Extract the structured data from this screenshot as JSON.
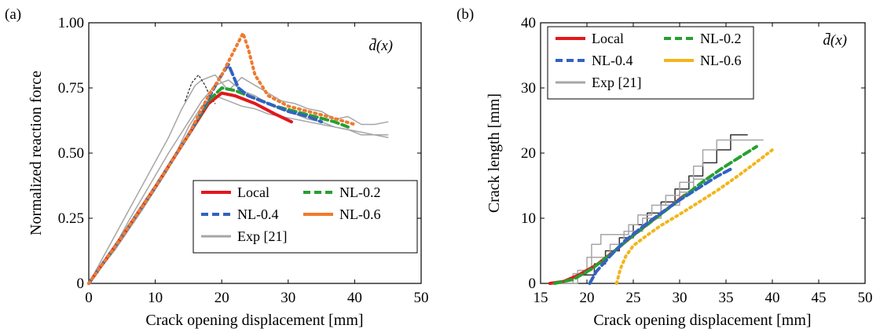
{
  "colors": {
    "local": "#e3171c",
    "nl02": "#27a02f",
    "nl04": "#3162c2",
    "nl06": "#f07a2e",
    "nl06_b": "#f3b51b",
    "exp": "#a6a6a6",
    "exp_dark": "#333333"
  },
  "chart_data": [
    {
      "type": "line",
      "panel_label": "(a)",
      "annotation": "d̄(x)",
      "xlabel": "Crack opening displacement [mm]",
      "ylabel": "Normalized reaction force",
      "xlim": [
        0,
        50
      ],
      "ylim": [
        0,
        1.0
      ],
      "x_ticks": [
        "0",
        "10",
        "20",
        "30",
        "40",
        "50"
      ],
      "y_ticks": [
        "0",
        "0.25",
        "0.50",
        "0.75",
        "1.00"
      ],
      "grid": false,
      "legend_position": "lower-right",
      "legend": [
        "Local",
        "NL-0.2",
        "NL-0.4",
        "NL-0.6",
        "Exp [21]"
      ],
      "series": [
        {
          "name": "Local",
          "style": "solid",
          "color_key": "local",
          "x": [
            0,
            5,
            10,
            15,
            18,
            20,
            22,
            25,
            28,
            30.5
          ],
          "y": [
            0,
            0.18,
            0.37,
            0.57,
            0.69,
            0.73,
            0.72,
            0.69,
            0.65,
            0.62
          ]
        },
        {
          "name": "NL-0.2",
          "style": "dashed",
          "color_key": "nl02",
          "x": [
            0,
            5,
            10,
            15,
            18,
            20,
            22,
            25,
            28,
            31,
            34,
            37,
            39
          ],
          "y": [
            0,
            0.18,
            0.37,
            0.57,
            0.7,
            0.75,
            0.74,
            0.71,
            0.68,
            0.66,
            0.64,
            0.62,
            0.6
          ]
        },
        {
          "name": "NL-0.4",
          "style": "dashed",
          "color_key": "nl04",
          "x": [
            0,
            5,
            10,
            15,
            18,
            19.5,
            21,
            22.5,
            24,
            27,
            30,
            33,
            35
          ],
          "y": [
            0,
            0.18,
            0.37,
            0.57,
            0.71,
            0.78,
            0.84,
            0.75,
            0.72,
            0.69,
            0.66,
            0.64,
            0.62
          ]
        },
        {
          "name": "NL-0.6",
          "style": "dotted",
          "color_key": "nl06",
          "x": [
            0,
            5,
            10,
            15,
            18,
            20,
            22,
            23.2,
            24,
            25,
            27,
            30,
            33,
            36,
            40
          ],
          "y": [
            0,
            0.18,
            0.37,
            0.57,
            0.72,
            0.8,
            0.9,
            0.96,
            0.9,
            0.8,
            0.72,
            0.68,
            0.66,
            0.64,
            0.61
          ]
        },
        {
          "name": "Exp [21]",
          "style": "solid",
          "color_key": "exp",
          "x": [
            0,
            3,
            6,
            9,
            12,
            14,
            16,
            17,
            19,
            21,
            23,
            25,
            27,
            29,
            31,
            33,
            35,
            37,
            39,
            41,
            43,
            45
          ],
          "y": [
            0,
            0.14,
            0.28,
            0.42,
            0.56,
            0.67,
            0.76,
            0.78,
            0.8,
            0.74,
            0.79,
            0.76,
            0.73,
            0.7,
            0.69,
            0.67,
            0.66,
            0.63,
            0.64,
            0.61,
            0.61,
            0.62
          ]
        },
        {
          "name": "Exp [21]",
          "style": "solid",
          "color_key": "exp",
          "x": [
            0,
            3,
            6,
            9,
            12,
            15,
            17,
            19,
            21,
            23,
            25,
            27,
            29,
            31,
            33,
            35,
            37,
            39,
            41,
            43,
            45
          ],
          "y": [
            0,
            0.1,
            0.24,
            0.37,
            0.5,
            0.62,
            0.7,
            0.76,
            0.78,
            0.74,
            0.72,
            0.69,
            0.67,
            0.65,
            0.63,
            0.62,
            0.6,
            0.59,
            0.57,
            0.57,
            0.56
          ]
        },
        {
          "name": "Exp [21]",
          "style": "solid",
          "color_key": "exp",
          "x": [
            0,
            4,
            8,
            12,
            15,
            17,
            19,
            21,
            23,
            25,
            27,
            29,
            31,
            33,
            35,
            37,
            39,
            41,
            43,
            45
          ],
          "y": [
            0,
            0.13,
            0.28,
            0.44,
            0.6,
            0.68,
            0.72,
            0.7,
            0.68,
            0.67,
            0.65,
            0.64,
            0.63,
            0.62,
            0.61,
            0.6,
            0.59,
            0.58,
            0.57,
            0.57
          ]
        },
        {
          "name": "Exp [21]",
          "style": "dotted",
          "color_key": "exp_dark",
          "x": [
            14.5,
            15.5,
            16.5,
            17.5,
            18.2,
            19
          ],
          "y": [
            0.7,
            0.77,
            0.8,
            0.76,
            0.72,
            0.69
          ]
        }
      ]
    },
    {
      "type": "line",
      "panel_label": "(b)",
      "annotation": "d̄(x)",
      "xlabel": "Crack opening displacement [mm]",
      "ylabel": "Crack length [mm]",
      "xlim": [
        15,
        50
      ],
      "ylim": [
        0,
        40
      ],
      "x_ticks": [
        "15",
        "20",
        "25",
        "30",
        "35",
        "40",
        "45",
        "50"
      ],
      "y_ticks": [
        "0",
        "10",
        "20",
        "30",
        "40"
      ],
      "grid": false,
      "legend_position": "top-left",
      "legend": [
        "Local",
        "NL-0.2",
        "NL-0.4",
        "NL-0.6",
        "Exp [21]"
      ],
      "series": [
        {
          "name": "Local",
          "style": "solid",
          "color_key": "local",
          "x": [
            16,
            17.5,
            19,
            21,
            23,
            25,
            27,
            29,
            30.5
          ],
          "y": [
            0,
            0.3,
            1.2,
            2.8,
            5.0,
            7.4,
            9.6,
            11.8,
            13.5
          ]
        },
        {
          "name": "NL-0.2",
          "style": "dashed",
          "color_key": "nl02",
          "x": [
            16.5,
            18.5,
            20.5,
            22.5,
            24.5,
            26.5,
            28.5,
            30.5,
            32.5,
            34.5,
            36.5,
            38.3
          ],
          "y": [
            0,
            0.6,
            2.2,
            4.4,
            6.8,
            9.0,
            11.2,
            13.4,
            15.6,
            17.6,
            19.4,
            21.0
          ]
        },
        {
          "name": "NL-0.4",
          "style": "dashed",
          "color_key": "nl04",
          "x": [
            20.3,
            21,
            22.5,
            24,
            26,
            28,
            30,
            32,
            34,
            35.6
          ],
          "y": [
            0,
            1.8,
            4.2,
            6.4,
            8.7,
            10.8,
            12.8,
            14.6,
            16.4,
            17.6
          ]
        },
        {
          "name": "NL-0.6",
          "style": "dotted",
          "color_key": "nl06_b",
          "x": [
            23.2,
            23.6,
            24.2,
            25,
            26.5,
            28,
            30,
            32,
            34,
            36,
            38,
            40
          ],
          "y": [
            0,
            2.2,
            4.2,
            5.8,
            7.4,
            8.9,
            10.6,
            12.4,
            14.2,
            16.2,
            18.3,
            20.5
          ]
        },
        {
          "name": "Exp [21]",
          "style": "step",
          "color_key": "exp_dark",
          "x": [
            19.3,
            20.8,
            20.8,
            22,
            22,
            23.5,
            23.5,
            25,
            25,
            26.5,
            26.5,
            28,
            28,
            29.5,
            29.5,
            31,
            31,
            32.5,
            32.5,
            34,
            34,
            35.5,
            35.5,
            37.3
          ],
          "y": [
            1.3,
            1.3,
            3.0,
            3.0,
            5.0,
            5.0,
            7.0,
            7.0,
            9.0,
            9.0,
            10.8,
            10.8,
            12.5,
            12.5,
            14.5,
            14.5,
            16.5,
            16.5,
            18.5,
            18.5,
            20.5,
            20.5,
            22.8,
            22.8
          ]
        },
        {
          "name": "Exp [21]",
          "style": "step",
          "color_key": "exp",
          "x": [
            16,
            19,
            19,
            20.5,
            20.5,
            21.5,
            21.5,
            24.5,
            24.5,
            25.5,
            25.5,
            27,
            27,
            28.5,
            28.5,
            30,
            30,
            31.5,
            31.5,
            32.5,
            32.5,
            34,
            34,
            39
          ],
          "y": [
            0,
            0,
            2.0,
            2.0,
            6.0,
            6.0,
            7.5,
            7.5,
            9.0,
            9.0,
            10.5,
            10.5,
            12.0,
            12.0,
            13.5,
            13.5,
            15.5,
            15.5,
            18.0,
            18.0,
            20.5,
            20.5,
            22.0,
            22.0
          ]
        },
        {
          "name": "Exp [21]",
          "style": "step",
          "color_key": "exp",
          "x": [
            17,
            18.5,
            18.5,
            20,
            20,
            22.5,
            22.5,
            24,
            24,
            26,
            26,
            28,
            28,
            30,
            30,
            31.5,
            31.5,
            33
          ],
          "y": [
            0,
            0,
            1.5,
            1.5,
            4.0,
            4.0,
            6.0,
            6.0,
            8.0,
            8.0,
            10.0,
            10.0,
            12.0,
            12.0,
            14.0,
            14.0,
            16.0,
            16.0
          ]
        }
      ]
    }
  ]
}
